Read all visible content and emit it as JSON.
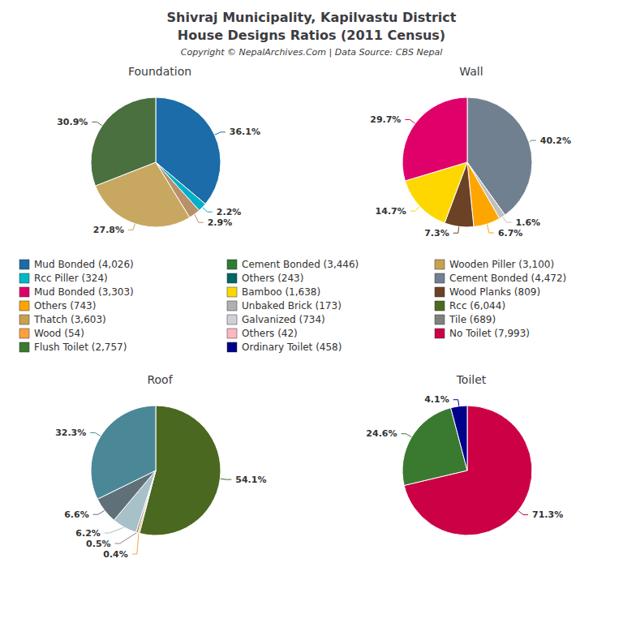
{
  "title": "Shivraj Municipality, Kapilvastu District",
  "subtitle": "House Designs Ratios (2011 Census)",
  "annotations": [
    "Copyright © NepalArchives.Com | Data Source: CBS Nepal"
  ],
  "legend_items": [
    {
      "name": "Mud Bonded (4,026)",
      "color": "#1B6CA8"
    },
    {
      "name": "Cement Bonded (3,446)",
      "color": "#2E7D32"
    },
    {
      "name": "Wooden Piller (3,100)",
      "color": "#C8A050"
    },
    {
      "name": "Rcc Piller (324)",
      "color": "#00B8C8"
    },
    {
      "name": "Others (243)",
      "color": "#006666"
    },
    {
      "name": "Cement Bonded (4,472)",
      "color": "#708090"
    },
    {
      "name": "Mud Bonded (3,303)",
      "color": "#E0006A"
    },
    {
      "name": "Bamboo (1,638)",
      "color": "#FFD700"
    },
    {
      "name": "Wood Planks (809)",
      "color": "#6B4226"
    },
    {
      "name": "Others (743)",
      "color": "#FFA500"
    },
    {
      "name": "Unbaked Brick (173)",
      "color": "#B0B0B0"
    },
    {
      "name": "Rcc (6,044)",
      "color": "#4A6B20"
    },
    {
      "name": "Thatch (3,603)",
      "color": "#C8A050"
    },
    {
      "name": "Galvanized (734)",
      "color": "#D0D0D8"
    },
    {
      "name": "Tile (689)",
      "color": "#808080"
    },
    {
      "name": "Wood (54)",
      "color": "#FFA040"
    },
    {
      "name": "Others (42)",
      "color": "#FFB6C1"
    },
    {
      "name": "No Toilet (7,993)",
      "color": "#CC0044"
    },
    {
      "name": "Flush Toilet (2,757)",
      "color": "#3A7A30"
    },
    {
      "name": "Ordinary Toilet (458)",
      "color": "#00008B"
    }
  ],
  "chart_data": [
    {
      "type": "pie",
      "title": "Foundation",
      "values": [
        36.1,
        2.2,
        2.9,
        27.8,
        30.9
      ],
      "value_labels": [
        "36.1%",
        "2.2%",
        "2.9%",
        "27.8%",
        "30.9%"
      ],
      "colors": [
        "#1B6CA8",
        "#00B0C8",
        "#B8906A",
        "#C8A860",
        "#4A7040"
      ],
      "data_labels": true
    },
    {
      "type": "pie",
      "title": "Wall",
      "values": [
        40.2,
        1.6,
        6.7,
        7.3,
        14.7,
        29.7
      ],
      "value_labels": [
        "40.2%",
        "1.6%",
        "6.7%",
        "7.3%",
        "14.7%",
        "29.7%"
      ],
      "colors": [
        "#708090",
        "#C0C0C0",
        "#FFA500",
        "#6B4226",
        "#FFD700",
        "#E0006A"
      ],
      "data_labels": true
    },
    {
      "type": "pie",
      "title": "Roof",
      "values": [
        54.1,
        0.4,
        0.5,
        6.2,
        6.6,
        32.3
      ],
      "value_labels": [
        "54.1%",
        "0.4%",
        "0.5%",
        "6.2%",
        "6.6%",
        "32.3%"
      ],
      "colors": [
        "#4A6820",
        "#FFA040",
        "#888888",
        "#A8C0C8",
        "#607078",
        "#4A8898"
      ],
      "data_labels": true
    },
    {
      "type": "pie",
      "title": "Toilet",
      "values": [
        71.3,
        24.6,
        4.1
      ],
      "value_labels": [
        "71.3%",
        "24.6%",
        "4.1%"
      ],
      "colors": [
        "#CC0044",
        "#3A7A30",
        "#00008B"
      ],
      "data_labels": true
    }
  ]
}
